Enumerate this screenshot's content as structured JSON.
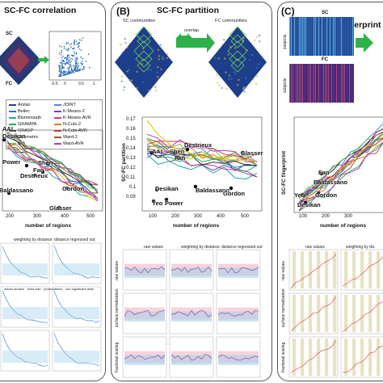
{
  "panelA": {
    "title": "SC-FC correlation",
    "sc_label": "SC",
    "fc_label": "FC",
    "scatter_ticks": [
      "-0.5",
      "0",
      "0.5",
      "1"
    ],
    "legend": [
      {
        "name": "Arslan",
        "color": "#1f3f9a"
      },
      {
        "name": "JOINT",
        "color": "#5b7fd8"
      },
      {
        "name": "Bellec",
        "color": "#2a74c9"
      },
      {
        "name": "K-Means-2",
        "color": "#7a3fb0"
      },
      {
        "name": "Blumensath",
        "color": "#1da9a1"
      },
      {
        "name": "K-Means-AVR",
        "color": "#c9408a"
      },
      {
        "name": "GRAMPA",
        "color": "#20b25b"
      },
      {
        "name": "N-Cuts-2",
        "color": "#e27a28"
      },
      {
        "name": "GRASP",
        "color": "#2b2b2b"
      },
      {
        "name": "N-Cuts-AVR",
        "color": "#e03a3a"
      },
      {
        "name": "Geometric",
        "color": "#e5c91d"
      },
      {
        "name": "Ward-2",
        "color": "#8b5a2b"
      },
      {
        "name": "ICA",
        "color": "#6fc04a"
      },
      {
        "name": "Ward-AVR",
        "color": "#b23cc4"
      }
    ],
    "point_labels": [
      "AAL",
      "Desikan",
      "Power",
      "Shen",
      "Fan",
      "Destrieux",
      "Gordon",
      "Baldassano",
      "Glasser"
    ],
    "xticks": [
      "200",
      "300",
      "400",
      "500"
    ],
    "xlabel": "number of regions",
    "sub_headers": [
      "weighting by distance",
      "distance regressed out"
    ],
    "legend2": "actual random · fixed size · permutations · non-significant tests"
  },
  "panelB": {
    "label": "(B)",
    "title": "SC-FC partition",
    "sc_comm": "SC communities",
    "fc_comm": "FC communities",
    "overlap": "overlap",
    "ylabel": "SC-FC partition",
    "yticks": [
      "0.17",
      "0.16",
      "0.15",
      "0.14",
      "0.13",
      "0.12",
      "0.11",
      "0.1",
      "0.09"
    ],
    "xticks": [
      "100",
      "200",
      "300",
      "400",
      "500"
    ],
    "xlabel": "number of regions",
    "point_labels": [
      "AAL",
      "Destrieux",
      "Shen",
      "Fan",
      "Glasser",
      "Desikan",
      "Baldassano",
      "Yeo",
      "Power",
      "Gordon"
    ],
    "sub_headers": [
      "raw values",
      "weighting by distance",
      "distance regressed out"
    ],
    "row_labels": [
      "raw values",
      "surface normalization",
      "fractional scaling"
    ]
  },
  "panelC": {
    "label": "(C)",
    "title": "SC-FC fingerprint",
    "sc_label": "SC",
    "fc_label": "FC",
    "subjects": "subjects",
    "ylabel": "SC-FC fingerprint",
    "xticks": [
      "100",
      "200",
      "300"
    ],
    "xlabel": "number of regions",
    "point_labels": [
      "Fan",
      "Baldassano",
      "Yeo",
      "Gordon",
      "Desikan"
    ],
    "sub_headers": [
      "raw values",
      "weighting by dis"
    ],
    "row_labels": [
      "raw values",
      "surface normalization",
      "fractional scaling"
    ]
  }
}
